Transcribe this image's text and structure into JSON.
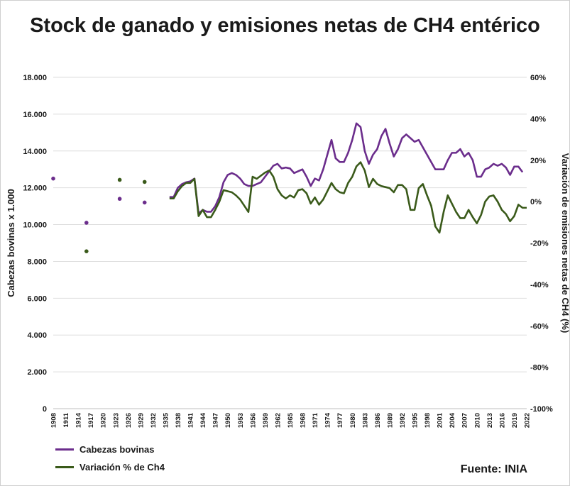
{
  "chart_data": {
    "type": "line",
    "title": "Stock de ganado y emisiones netas de CH4 entérico",
    "ylabel": "Cabezas bovinas x 1.000",
    "y2label": "Variación de emisiones netas de CH4 (%)",
    "xlabel": "",
    "ylim": [
      0,
      18000
    ],
    "y2lim": [
      -100,
      60
    ],
    "y_ticks": [
      "0",
      "2.000",
      "4.000",
      "6.000",
      "8.000",
      "10.000",
      "12.000",
      "14.000",
      "16.000",
      "18.000"
    ],
    "y2_ticks": [
      "-100%",
      "-80%",
      "-60%",
      "-40%",
      "-20%",
      "0%",
      "20%",
      "40%",
      "60%"
    ],
    "x_ticks": [
      "1908",
      "1911",
      "1914",
      "1917",
      "1920",
      "1923",
      "1926",
      "1929",
      "1932",
      "1935",
      "1938",
      "1941",
      "1944",
      "1947",
      "1950",
      "1953",
      "1956",
      "1959",
      "1962",
      "1965",
      "1968",
      "1971",
      "1974",
      "1977",
      "1980",
      "1983",
      "1986",
      "1989",
      "1992",
      "1995",
      "1998",
      "2001",
      "2004",
      "2007",
      "2010",
      "2013",
      "2016",
      "2019",
      "2022"
    ],
    "grid": true,
    "legend_position": "bottom-left",
    "series": [
      {
        "name": "Cabezas bovinas",
        "axis": "left",
        "color": "#6b2d8c",
        "points": [
          [
            1908,
            12500
          ],
          [
            1916,
            10100
          ],
          [
            1924,
            11400
          ],
          [
            1930,
            11200
          ],
          [
            1936,
            11500
          ],
          [
            1937,
            11500
          ],
          [
            1938,
            12000
          ],
          [
            1939,
            12200
          ],
          [
            1940,
            12300
          ],
          [
            1941,
            12350
          ],
          [
            1942,
            12500
          ],
          [
            1943,
            10600
          ],
          [
            1944,
            10800
          ],
          [
            1945,
            10700
          ],
          [
            1946,
            10700
          ],
          [
            1947,
            11000
          ],
          [
            1948,
            11500
          ],
          [
            1949,
            12300
          ],
          [
            1950,
            12700
          ],
          [
            1951,
            12800
          ],
          [
            1952,
            12700
          ],
          [
            1953,
            12500
          ],
          [
            1954,
            12200
          ],
          [
            1955,
            12100
          ],
          [
            1956,
            12100
          ],
          [
            1957,
            12200
          ],
          [
            1958,
            12300
          ],
          [
            1959,
            12600
          ],
          [
            1960,
            12900
          ],
          [
            1961,
            13200
          ],
          [
            1962,
            13300
          ],
          [
            1963,
            13050
          ],
          [
            1964,
            13100
          ],
          [
            1965,
            13050
          ],
          [
            1966,
            12800
          ],
          [
            1967,
            12900
          ],
          [
            1968,
            13000
          ],
          [
            1969,
            12600
          ],
          [
            1970,
            12100
          ],
          [
            1971,
            12500
          ],
          [
            1972,
            12400
          ],
          [
            1973,
            13000
          ],
          [
            1974,
            13800
          ],
          [
            1975,
            14600
          ],
          [
            1976,
            13600
          ],
          [
            1977,
            13400
          ],
          [
            1978,
            13400
          ],
          [
            1979,
            13900
          ],
          [
            1980,
            14600
          ],
          [
            1981,
            15500
          ],
          [
            1982,
            15300
          ],
          [
            1983,
            14000
          ],
          [
            1984,
            13300
          ],
          [
            1985,
            13800
          ],
          [
            1986,
            14100
          ],
          [
            1987,
            14800
          ],
          [
            1988,
            15200
          ],
          [
            1989,
            14400
          ],
          [
            1990,
            13700
          ],
          [
            1991,
            14100
          ],
          [
            1992,
            14700
          ],
          [
            1993,
            14900
          ],
          [
            1994,
            14700
          ],
          [
            1995,
            14500
          ],
          [
            1996,
            14600
          ],
          [
            1997,
            14200
          ],
          [
            1998,
            13800
          ],
          [
            1999,
            13400
          ],
          [
            2000,
            13000
          ],
          [
            2001,
            13000
          ],
          [
            2002,
            13000
          ],
          [
            2003,
            13500
          ],
          [
            2004,
            13900
          ],
          [
            2005,
            13900
          ],
          [
            2006,
            14100
          ],
          [
            2007,
            13700
          ],
          [
            2008,
            13900
          ],
          [
            2009,
            13500
          ],
          [
            2010,
            12600
          ],
          [
            2011,
            12600
          ],
          [
            2012,
            13000
          ],
          [
            2013,
            13100
          ],
          [
            2014,
            13300
          ],
          [
            2015,
            13200
          ],
          [
            2016,
            13300
          ],
          [
            2017,
            13100
          ],
          [
            2018,
            12700
          ],
          [
            2019,
            13150
          ],
          [
            2020,
            13150
          ],
          [
            2021,
            12850
          ]
        ]
      },
      {
        "name": "Variación % de Ch4",
        "axis": "right",
        "color": "#3a5a1a",
        "points": [
          [
            1916,
            -24
          ],
          [
            1924,
            10.5
          ],
          [
            1930,
            9.5
          ],
          [
            1936,
            1.5
          ],
          [
            1937,
            1.5
          ],
          [
            1938,
            5
          ],
          [
            1939,
            7.5
          ],
          [
            1940,
            9
          ],
          [
            1941,
            9
          ],
          [
            1942,
            11
          ],
          [
            1943,
            -7
          ],
          [
            1944,
            -4
          ],
          [
            1945,
            -7.5
          ],
          [
            1946,
            -7.5
          ],
          [
            1947,
            -4
          ],
          [
            1948,
            0
          ],
          [
            1949,
            5.5
          ],
          [
            1950,
            5
          ],
          [
            1951,
            4.5
          ],
          [
            1952,
            3
          ],
          [
            1953,
            1
          ],
          [
            1954,
            -2
          ],
          [
            1955,
            -5
          ],
          [
            1956,
            12
          ],
          [
            1957,
            11
          ],
          [
            1958,
            12.5
          ],
          [
            1959,
            14
          ],
          [
            1960,
            15
          ],
          [
            1961,
            12
          ],
          [
            1962,
            6
          ],
          [
            1963,
            3
          ],
          [
            1964,
            1.5
          ],
          [
            1965,
            3
          ],
          [
            1966,
            2
          ],
          [
            1967,
            5.5
          ],
          [
            1968,
            6
          ],
          [
            1969,
            4
          ],
          [
            1970,
            -1
          ],
          [
            1971,
            2
          ],
          [
            1972,
            -1.5
          ],
          [
            1973,
            1
          ],
          [
            1974,
            5
          ],
          [
            1975,
            9
          ],
          [
            1976,
            6
          ],
          [
            1977,
            4.5
          ],
          [
            1978,
            4
          ],
          [
            1979,
            9
          ],
          [
            1980,
            12
          ],
          [
            1981,
            17
          ],
          [
            1982,
            19
          ],
          [
            1983,
            15
          ],
          [
            1984,
            7
          ],
          [
            1985,
            11
          ],
          [
            1986,
            8.5
          ],
          [
            1987,
            7.5
          ],
          [
            1988,
            7
          ],
          [
            1989,
            6.5
          ],
          [
            1990,
            4.5
          ],
          [
            1991,
            8
          ],
          [
            1992,
            8
          ],
          [
            1993,
            6
          ],
          [
            1994,
            -4
          ],
          [
            1995,
            -4
          ],
          [
            1996,
            6.5
          ],
          [
            1997,
            8.5
          ],
          [
            1998,
            3
          ],
          [
            1999,
            -2
          ],
          [
            2000,
            -12
          ],
          [
            2001,
            -15
          ],
          [
            2002,
            -5
          ],
          [
            2003,
            3
          ],
          [
            2004,
            -1
          ],
          [
            2005,
            -5
          ],
          [
            2006,
            -8
          ],
          [
            2007,
            -8
          ],
          [
            2008,
            -4
          ],
          [
            2009,
            -7.5
          ],
          [
            2010,
            -10.5
          ],
          [
            2011,
            -6.5
          ],
          [
            2012,
            0
          ],
          [
            2013,
            2.5
          ],
          [
            2014,
            3
          ],
          [
            2015,
            0
          ],
          [
            2016,
            -4
          ],
          [
            2017,
            -6
          ],
          [
            2018,
            -9.5
          ],
          [
            2019,
            -7
          ],
          [
            2020,
            -1.5
          ],
          [
            2021,
            -3
          ],
          [
            2022,
            -3
          ]
        ]
      }
    ]
  },
  "legend": {
    "item1": "Cabezas bovinas",
    "item2": "Variación % de Ch4"
  },
  "source": "Fuente: INIA"
}
